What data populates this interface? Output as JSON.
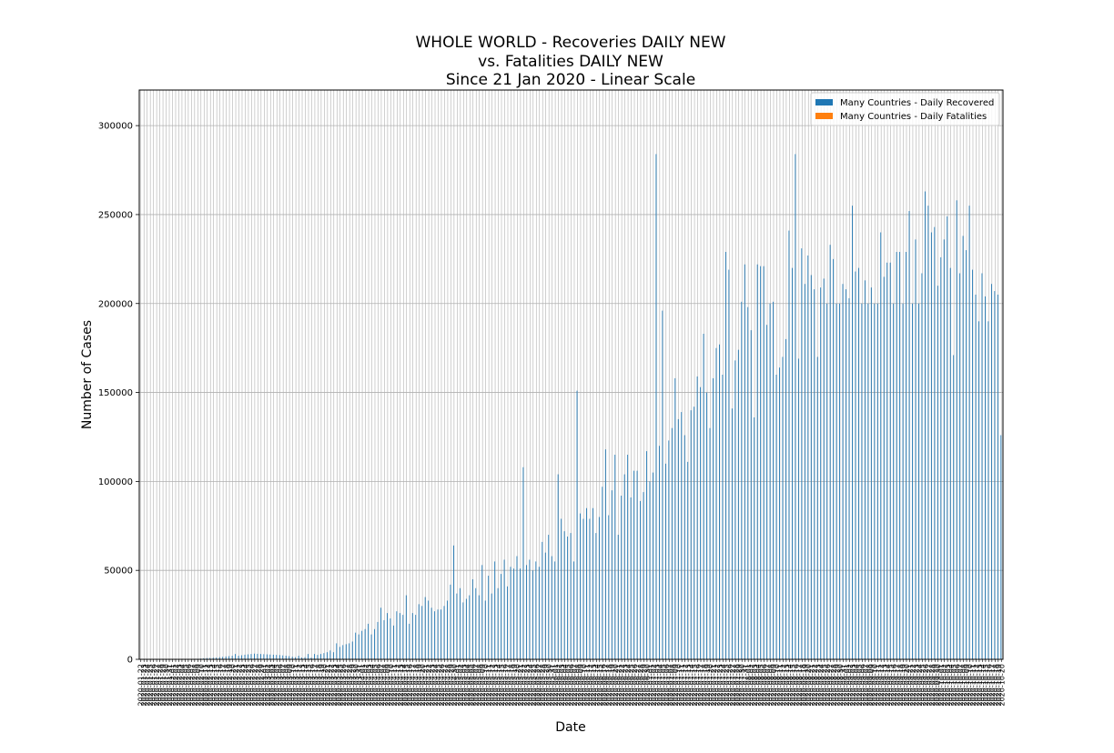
{
  "chart_data": {
    "type": "bar",
    "title_lines": [
      "WHOLE WORLD - Recoveries DAILY NEW",
      "vs. Fatalities DAILY NEW",
      "Since 21 Jan 2020 - Linear Scale"
    ],
    "xlabel": "Date",
    "ylabel": "Number of Cases",
    "ylim": [
      0,
      320000
    ],
    "yticks": [
      0,
      50000,
      100000,
      150000,
      200000,
      250000,
      300000
    ],
    "grid": true,
    "legend_position": "top-right",
    "x_start": "2020-01-22",
    "x_end": "2020-10-19",
    "x_tick_format": "YYYY-MM-DD",
    "series_colors": [
      "#1f77b4",
      "#ff7f0e"
    ],
    "series": [
      {
        "name": "Many Countries - Daily Recovered",
        "values": [
          0,
          0,
          0,
          0,
          0,
          0,
          0,
          0,
          0,
          0,
          0,
          0,
          0,
          0,
          0,
          0,
          0,
          200,
          300,
          400,
          600,
          700,
          800,
          900,
          1000,
          1200,
          1400,
          1600,
          1800,
          2000,
          3000,
          2000,
          2300,
          2600,
          2800,
          3000,
          3200,
          3100,
          3000,
          2900,
          2800,
          2700,
          2600,
          2500,
          2400,
          2200,
          2000,
          1800,
          1500,
          1200,
          2000,
          1000,
          1200,
          3000,
          1000,
          3000,
          2500,
          3000,
          3500,
          4000,
          5000,
          4000,
          9000,
          7000,
          8000,
          8500,
          9000,
          10000,
          15000,
          14000,
          16000,
          17000,
          20000,
          14000,
          17000,
          21000,
          29000,
          22000,
          26000,
          23000,
          19000,
          27000,
          26000,
          25000,
          36000,
          20000,
          26000,
          25000,
          31000,
          30000,
          35000,
          33000,
          29000,
          27000,
          28000,
          28000,
          30000,
          33000,
          42000,
          64000,
          37000,
          40000,
          32000,
          34000,
          36000,
          45000,
          40000,
          36000,
          53000,
          33000,
          47000,
          37000,
          55000,
          40000,
          48000,
          56000,
          41000,
          52000,
          51000,
          58000,
          51000,
          108000,
          53000,
          56000,
          50000,
          55000,
          52000,
          66000,
          60000,
          70000,
          58000,
          55000,
          104000,
          79000,
          72000,
          69000,
          71000,
          55000,
          151000,
          82000,
          79000,
          85000,
          79000,
          85000,
          71000,
          80000,
          97000,
          118000,
          81000,
          95000,
          115000,
          70000,
          92000,
          104000,
          115000,
          91000,
          106000,
          106000,
          89000,
          94000,
          117000,
          100000,
          105000,
          284000,
          120000,
          196000,
          110000,
          123000,
          130000,
          158000,
          135000,
          139000,
          126000,
          111000,
          140000,
          142000,
          159000,
          153000,
          183000,
          150000,
          130000,
          158000,
          175000,
          177000,
          160000,
          229000,
          219000,
          141000,
          168000,
          174000,
          201000,
          222000,
          198000,
          185000,
          136000,
          222000,
          221000,
          221000,
          188000,
          200000,
          201000,
          160000,
          164000,
          170000,
          180000,
          241000,
          220000,
          284000,
          169000,
          231000,
          211000,
          227000,
          216000,
          208000,
          170000,
          209000,
          214000,
          200000,
          233000,
          225000,
          200000,
          200000,
          211000,
          208000,
          203000,
          255000,
          218000,
          220000,
          200000,
          213000,
          200000,
          209000,
          200000,
          200000,
          240000,
          215000,
          223000,
          223000,
          200000,
          229000,
          229000,
          200000,
          229000,
          252000,
          200000,
          236000,
          200000,
          217000,
          263000,
          255000,
          240000,
          243000,
          210000,
          226000,
          236000,
          249000,
          220000,
          171000,
          258000,
          217000,
          238000,
          230000,
          255000,
          219000,
          205000,
          190000,
          217000,
          204000,
          190000,
          211000,
          207000,
          205000,
          126000
        ],
        "step_days": 1
      },
      {
        "name": "Many Countries - Daily Fatalities",
        "values": [
          0,
          0,
          0,
          0,
          0,
          0,
          0,
          0,
          0,
          0,
          0,
          0,
          0,
          0,
          0,
          0,
          0,
          0,
          0,
          0,
          0,
          0,
          0,
          0,
          0,
          0,
          0,
          0,
          0,
          0,
          0,
          0,
          0,
          0,
          0,
          0,
          0,
          0,
          0,
          0,
          0,
          0,
          0,
          0,
          0,
          0,
          0,
          0,
          0,
          0,
          0,
          0,
          0,
          0,
          0,
          0,
          0,
          0,
          0,
          0,
          0,
          0,
          0,
          0,
          0,
          0,
          0,
          0,
          0,
          0,
          0,
          0,
          0,
          0,
          0,
          0,
          0,
          0,
          0,
          0,
          0,
          0,
          0,
          0,
          0,
          0,
          0,
          0,
          0,
          0,
          0,
          0,
          0,
          0,
          0,
          0,
          0,
          0,
          0,
          0,
          0,
          0,
          0,
          0,
          0,
          0,
          0,
          0,
          0,
          0,
          0,
          0,
          0,
          0,
          0,
          0,
          0,
          0,
          0,
          0,
          0,
          0,
          0,
          0,
          0,
          0,
          0,
          0,
          0,
          0,
          0,
          0,
          0,
          0,
          0,
          0,
          0,
          0,
          0,
          0,
          0,
          0,
          0,
          0,
          0,
          0,
          0,
          0,
          0,
          0,
          0,
          0,
          0,
          0,
          0,
          0,
          0,
          0,
          0,
          0,
          0,
          0,
          0,
          0,
          0,
          0,
          0,
          0,
          0,
          0,
          0,
          0,
          0,
          0,
          0,
          0,
          0,
          0,
          0,
          0,
          0,
          0,
          0,
          0,
          0,
          0,
          0,
          0,
          0,
          0,
          0,
          0,
          0,
          0,
          0,
          0,
          0,
          0,
          0,
          0,
          0,
          0,
          0,
          0,
          0,
          0,
          0,
          0,
          0,
          0,
          0,
          0,
          0,
          0,
          0,
          0,
          0,
          0,
          0,
          0,
          0,
          0,
          0,
          0,
          0,
          0,
          0,
          0,
          0,
          0,
          0,
          0,
          0,
          0,
          0,
          0,
          0,
          0,
          0,
          0,
          0,
          0,
          0,
          0,
          0,
          0,
          0,
          0,
          0,
          0,
          0,
          0,
          0,
          0,
          0,
          0,
          0,
          0,
          0,
          0,
          0,
          0,
          0,
          0,
          0,
          0,
          0,
          0,
          0,
          0,
          0,
          0,
          0,
          0,
          0,
          0,
          0,
          0,
          0,
          0,
          0,
          0,
          0,
          0,
          0,
          0,
          0,
          0,
          0,
          0
        ],
        "step_days": 1
      }
    ]
  }
}
